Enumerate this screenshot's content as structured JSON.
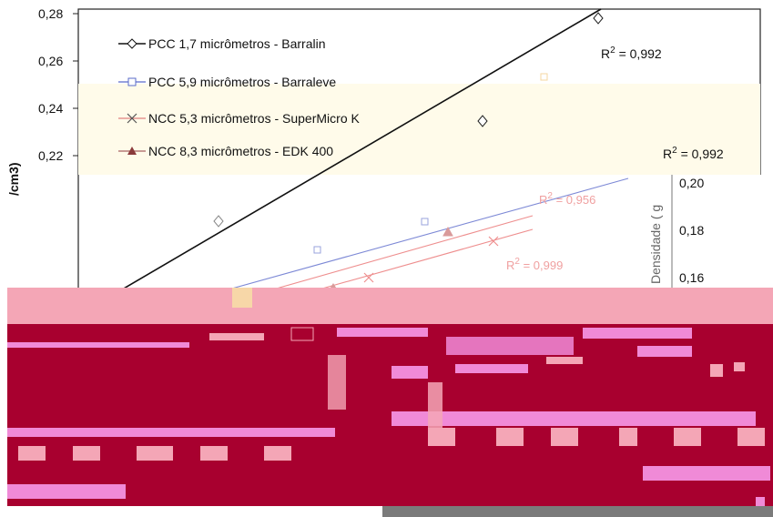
{
  "chart_data": {
    "type": "scatter",
    "ylabel": "/cm3)",
    "ylabel_faded": "Densidade ( g",
    "yticks": [
      "0,28",
      "0,26",
      "0,24",
      "0,22"
    ],
    "yticks_faded": [
      "0,20",
      "0,18",
      "0,16"
    ],
    "series": [
      {
        "name": "PCC 1,7 micrômetros - Barralin",
        "marker": "diamond",
        "color": "#111111"
      },
      {
        "name": "PCC 5,9  micrômetros - Barraleve",
        "marker": "square",
        "color": "#111111"
      },
      {
        "name": "NCC 5,3  micrômetros - SuperMicro K",
        "marker": "x",
        "color": "#111111"
      },
      {
        "name": "NCC 8,3  micrômetros - EDK 400",
        "marker": "triangle",
        "color": "#111111"
      }
    ],
    "annotations": [
      "R2 = 0,992",
      "R2 = 0,992",
      "R2 = 0,956",
      "R2 = 0,999"
    ]
  },
  "colors": {
    "axis": "#111111",
    "overlay_red": "#a8002f",
    "overlay_pink": "#f4a6b6",
    "overlay_magenta": "#e87ad8",
    "faded_blue": "#8a95d8",
    "faded_red": "#ee9a9a"
  }
}
